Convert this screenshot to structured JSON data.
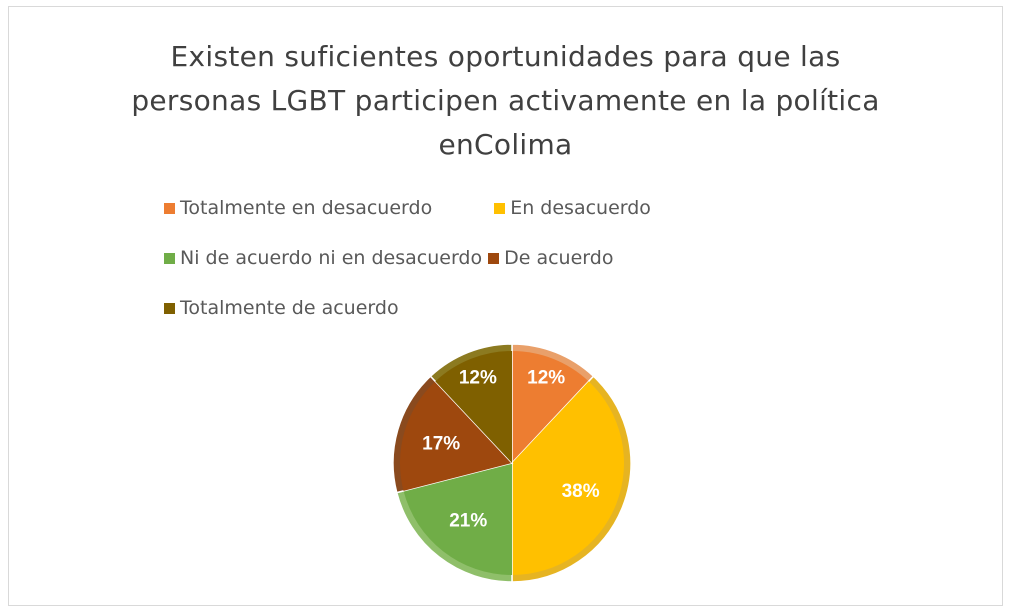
{
  "chart_data": {
    "type": "pie",
    "title_lines": [
      "Existen suficientes oportunidades para que las",
      "personas LGBT participen activamente en la política",
      "enColima"
    ],
    "categories": [
      "Totalmente en desacuerdo",
      "En desacuerdo",
      "Ni de acuerdo ni en desacuerdo",
      "De acuerdo",
      "Totalmente de acuerdo"
    ],
    "values": [
      12,
      38,
      21,
      17,
      12
    ],
    "data_labels": [
      "12%",
      "38%",
      "21%",
      "17%",
      "12%"
    ],
    "colors": [
      "#ED7D31",
      "#FFC000",
      "#70AD47",
      "#9E480E",
      "#7F6000"
    ],
    "border_colors": [
      "#E9A06A",
      "#E6B422",
      "#8FBF6A",
      "#8A4A1E",
      "#8C7A20"
    ],
    "legend_position": "top"
  }
}
